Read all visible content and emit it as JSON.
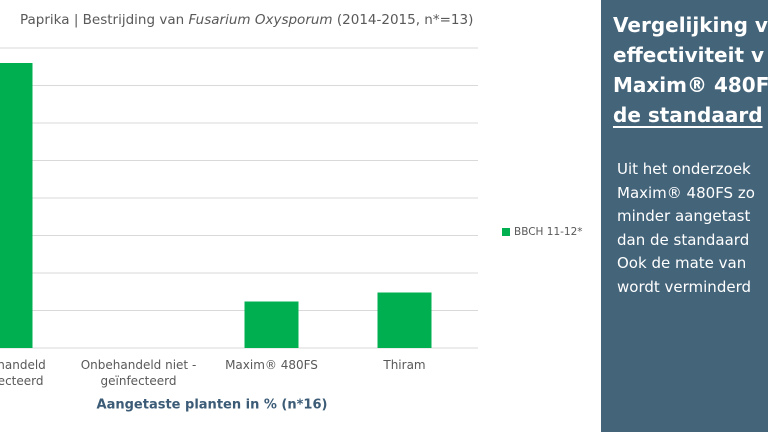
{
  "chart_data": {
    "type": "bar",
    "title_parts": [
      "Paprika | Bestrijding van ",
      "Fusarium Oxysporum",
      " (2014-2015, n*=13)"
    ],
    "categories": [
      [
        "Onbehandeld",
        "geïnfecteerd"
      ],
      [
        "Onbehandeld niet -",
        "geïnfecteerd"
      ],
      [
        "Maxim® 480FS"
      ],
      [
        "Thiram"
      ]
    ],
    "series": [
      {
        "name": "BBCH 11-12*",
        "color": "#00b050",
        "values": [
          38,
          0,
          6.2,
          7.4
        ]
      }
    ],
    "x_label": "Aangetaste planten in % (n*16)",
    "ylim": [
      0,
      40
    ],
    "yticks": [
      0,
      5,
      10,
      15,
      20,
      25,
      30,
      35,
      40
    ],
    "grid": true,
    "legend": "right"
  },
  "panel": {
    "heading_lines": [
      "Vergelijking v",
      "effectiviteit v",
      "Maxim® 480F",
      "de standaard"
    ],
    "body_lines": [
      "Uit het onderzoek",
      "Maxim® 480FS zo",
      "minder aangetast",
      "dan de standaard",
      "Ook de mate van",
      "wordt verminderd"
    ]
  }
}
